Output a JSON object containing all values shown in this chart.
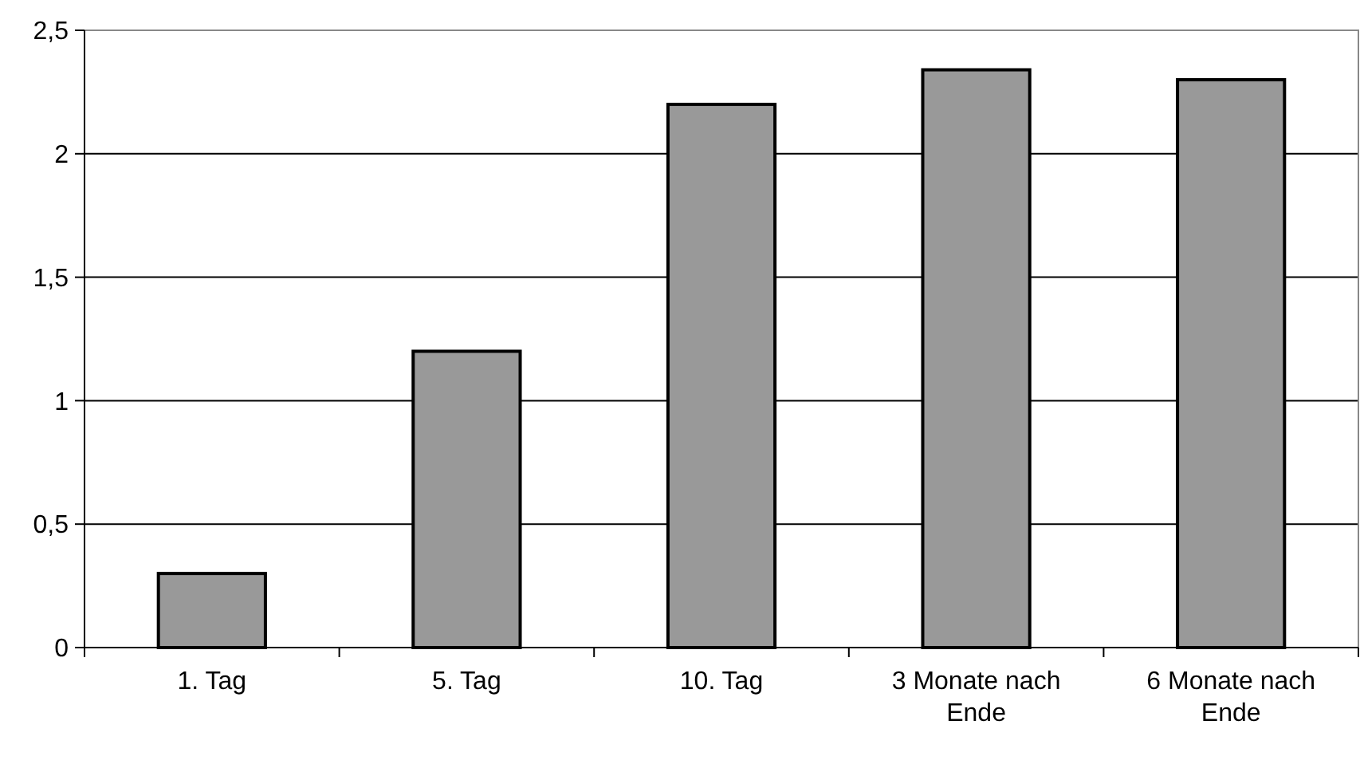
{
  "chart_data": {
    "type": "bar",
    "categories": [
      "1. Tag",
      "5. Tag",
      "10. Tag",
      "3 Monate nach Ende",
      "6 Monate nach Ende"
    ],
    "values": [
      0.3,
      1.2,
      2.2,
      2.34,
      2.3
    ],
    "color": "#999999",
    "ylim": [
      0,
      2.5
    ],
    "yticks": [
      0,
      {
        "value": 0.5,
        "label": "0,5"
      },
      1,
      {
        "value": 1.5,
        "label": "1,5"
      },
      2,
      {
        "value": 2.5,
        "label": "2,5"
      }
    ],
    "grid": "y"
  }
}
